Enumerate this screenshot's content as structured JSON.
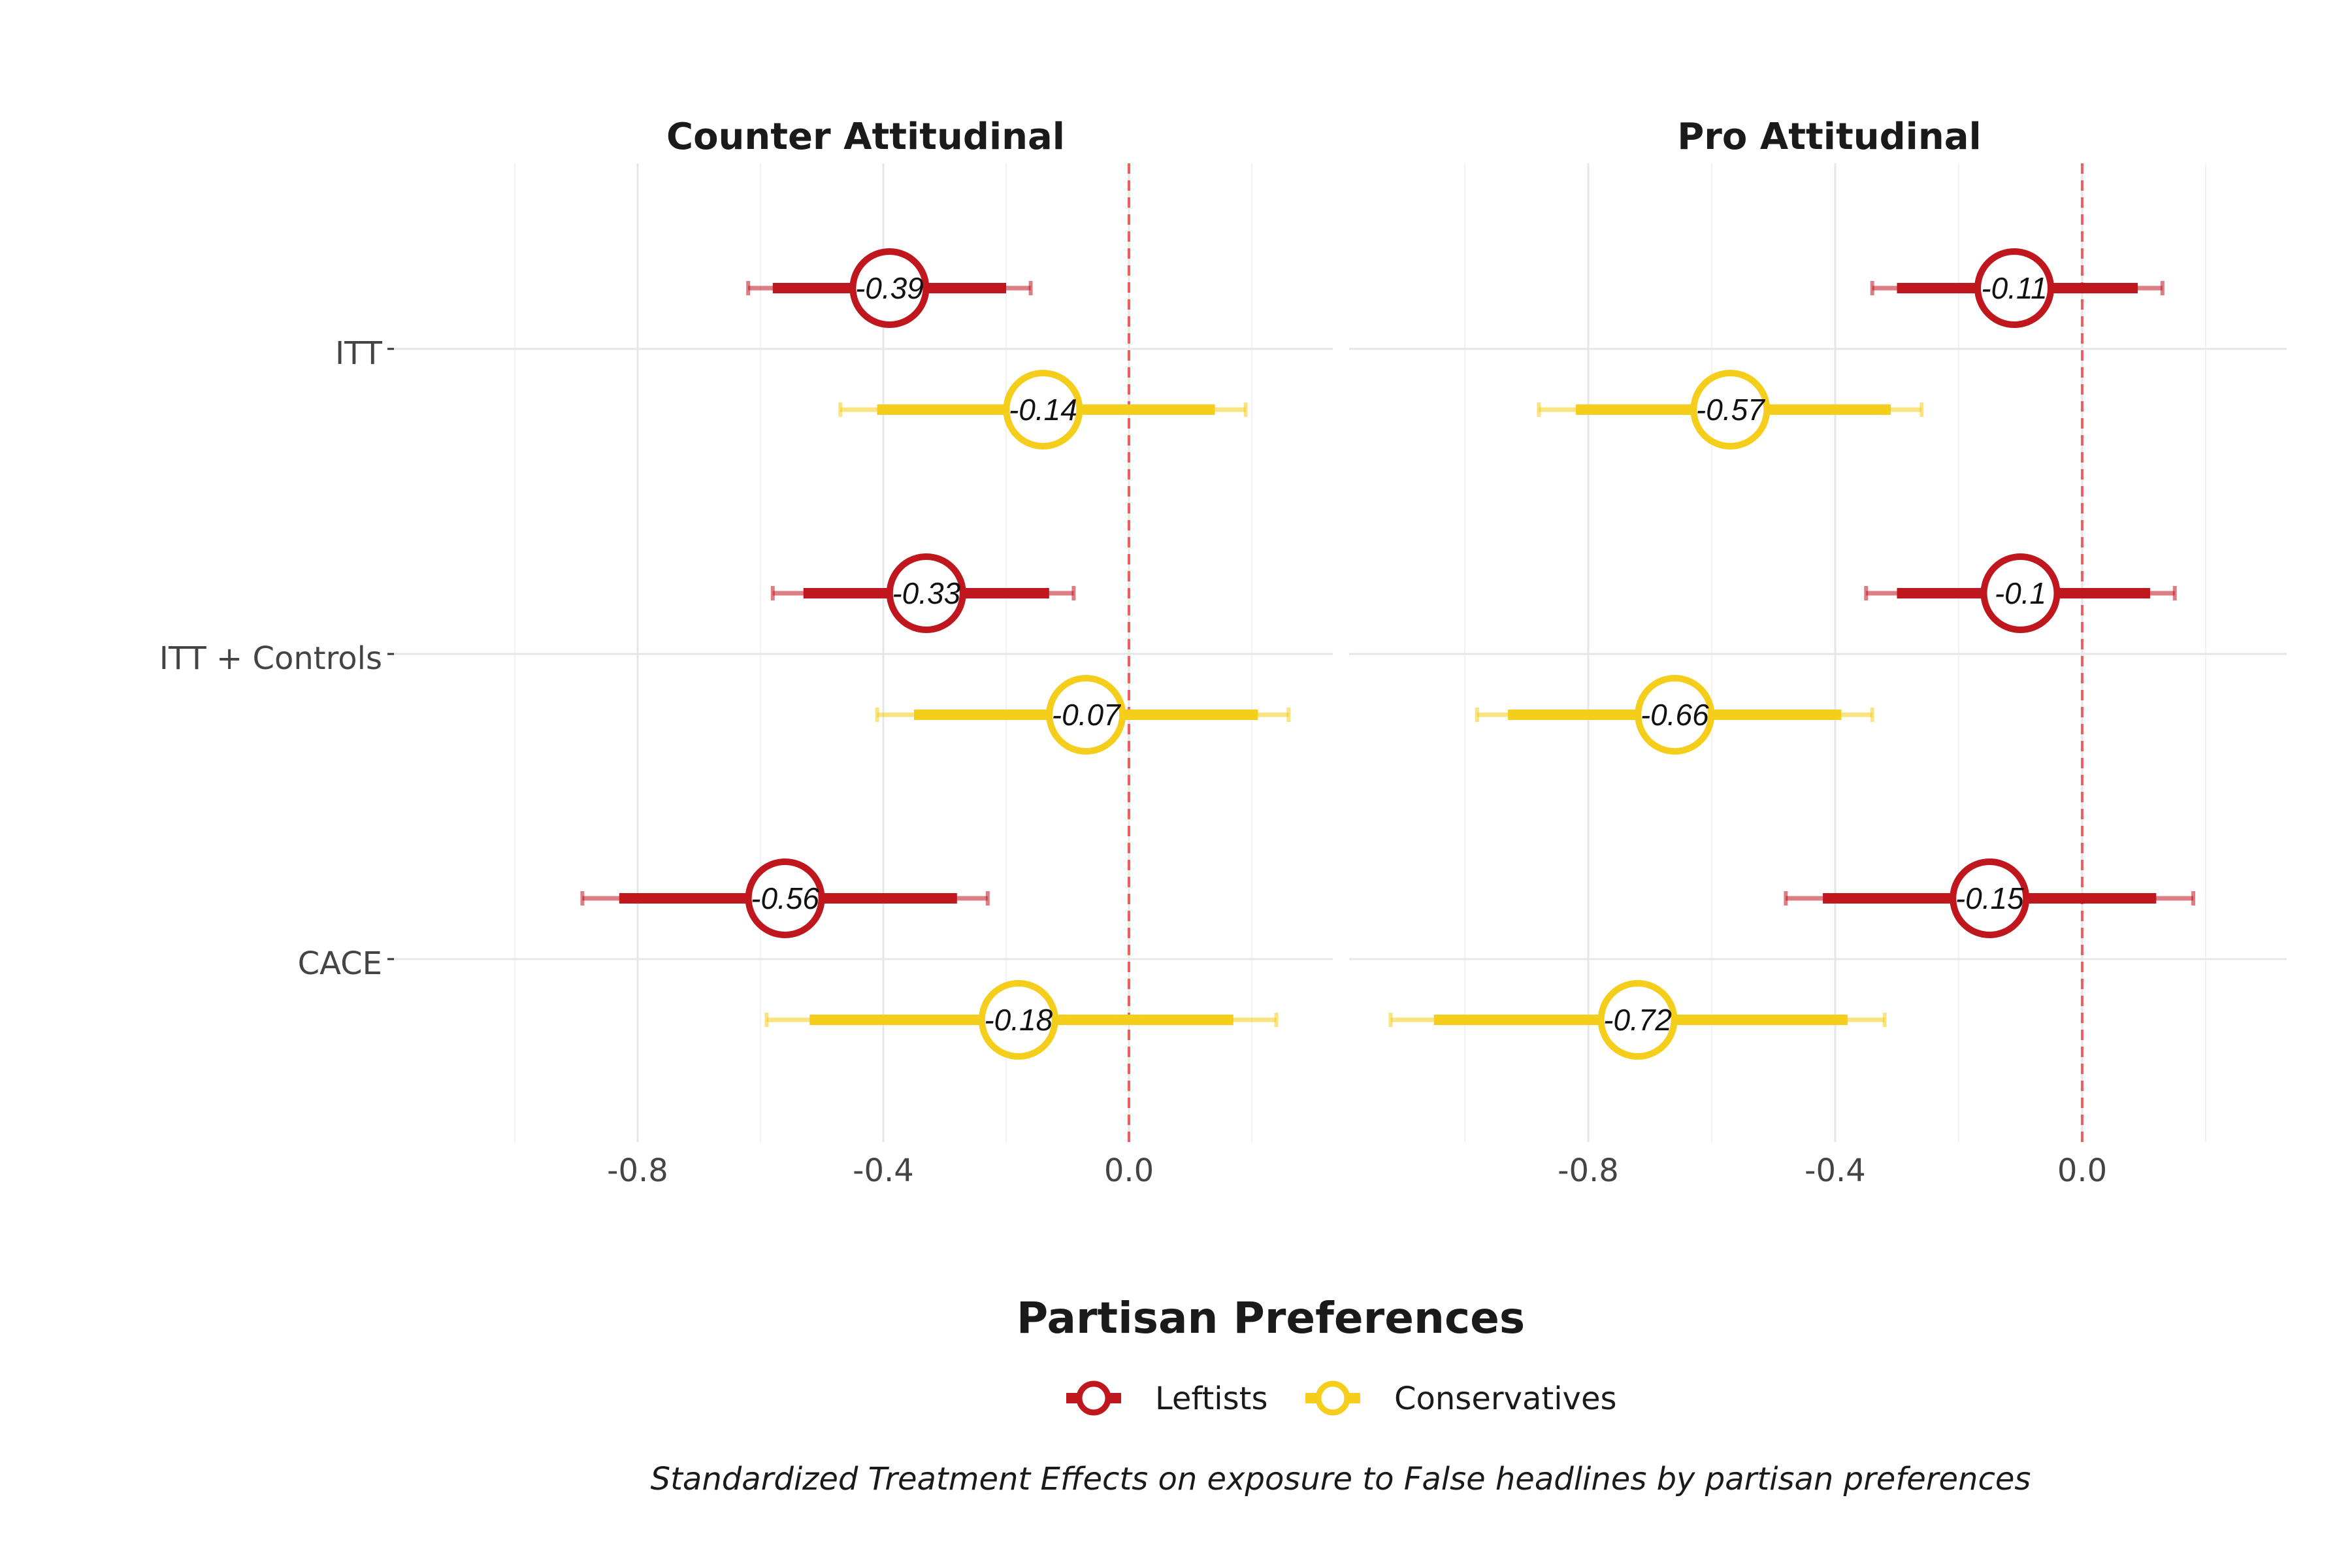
{
  "chart_data": {
    "type": "forest",
    "facets": [
      "Counter Attitudinal",
      "Pro Attitudinal"
    ],
    "categories": [
      "ITT",
      "ITT + Controls",
      "CACE"
    ],
    "x_ticks": [
      -0.8,
      -0.4,
      0.0
    ],
    "x_tick_labels": [
      "-0.8",
      "-0.4",
      "0.0"
    ],
    "reference_line": 0,
    "grid": true,
    "legend": {
      "title": "Partisan Preferences",
      "position": "bottom"
    },
    "caption": "Standardized Treatment Effects on exposure to False headlines by partisan preferences",
    "series": [
      {
        "name": "Leftists",
        "color": "#C0161E",
        "points": [
          {
            "facet": "Counter Attitudinal",
            "category": "ITT",
            "estimate": -0.39,
            "label": "-0.39",
            "ci90": [
              -0.58,
              -0.2
            ],
            "ci95": [
              -0.62,
              -0.16
            ]
          },
          {
            "facet": "Counter Attitudinal",
            "category": "ITT + Controls",
            "estimate": -0.33,
            "label": "-0.33",
            "ci90": [
              -0.53,
              -0.13
            ],
            "ci95": [
              -0.58,
              -0.09
            ]
          },
          {
            "facet": "Counter Attitudinal",
            "category": "CACE",
            "estimate": -0.56,
            "label": "-0.56",
            "ci90": [
              -0.83,
              -0.28
            ],
            "ci95": [
              -0.89,
              -0.23
            ]
          },
          {
            "facet": "Pro Attitudinal",
            "category": "ITT",
            "estimate": -0.11,
            "label": "-0.11",
            "ci90": [
              -0.3,
              0.09
            ],
            "ci95": [
              -0.34,
              0.13
            ]
          },
          {
            "facet": "Pro Attitudinal",
            "category": "ITT + Controls",
            "estimate": -0.1,
            "label": "-0.1",
            "ci90": [
              -0.3,
              0.11
            ],
            "ci95": [
              -0.35,
              0.15
            ]
          },
          {
            "facet": "Pro Attitudinal",
            "category": "CACE",
            "estimate": -0.15,
            "label": "-0.15",
            "ci90": [
              -0.42,
              0.12
            ],
            "ci95": [
              -0.48,
              0.18
            ]
          }
        ]
      },
      {
        "name": "Conservatives",
        "color": "#F5CE1B",
        "points": [
          {
            "facet": "Counter Attitudinal",
            "category": "ITT",
            "estimate": -0.14,
            "label": "-0.14",
            "ci90": [
              -0.41,
              0.14
            ],
            "ci95": [
              -0.47,
              0.19
            ]
          },
          {
            "facet": "Counter Attitudinal",
            "category": "ITT + Controls",
            "estimate": -0.07,
            "label": "-0.07",
            "ci90": [
              -0.35,
              0.21
            ],
            "ci95": [
              -0.41,
              0.26
            ]
          },
          {
            "facet": "Counter Attitudinal",
            "category": "CACE",
            "estimate": -0.18,
            "label": "-0.18",
            "ci90": [
              -0.52,
              0.17
            ],
            "ci95": [
              -0.59,
              0.24
            ]
          },
          {
            "facet": "Pro Attitudinal",
            "category": "ITT",
            "estimate": -0.57,
            "label": "-0.57",
            "ci90": [
              -0.82,
              -0.31
            ],
            "ci95": [
              -0.88,
              -0.26
            ]
          },
          {
            "facet": "Pro Attitudinal",
            "category": "ITT + Controls",
            "estimate": -0.66,
            "label": "-0.66",
            "ci90": [
              -0.93,
              -0.39
            ],
            "ci95": [
              -0.98,
              -0.34
            ]
          },
          {
            "facet": "Pro Attitudinal",
            "category": "CACE",
            "estimate": -0.72,
            "label": "-0.72",
            "ci90": [
              -1.05,
              -0.38
            ],
            "ci95": [
              -1.12,
              -0.32
            ]
          }
        ]
      }
    ]
  }
}
